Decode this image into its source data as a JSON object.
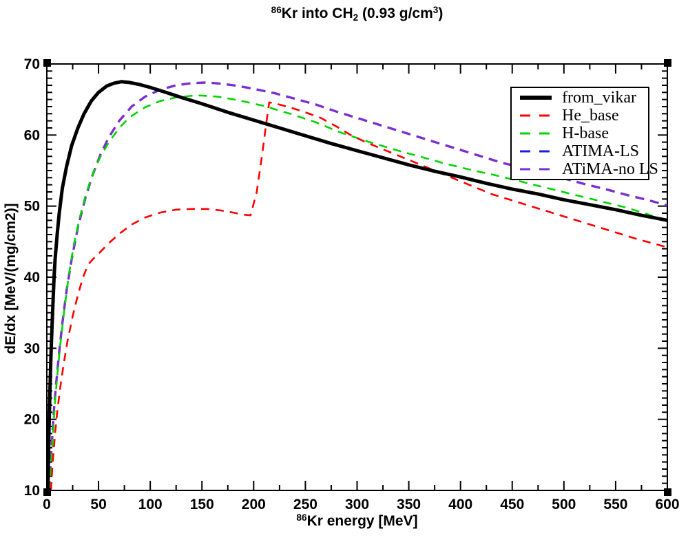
{
  "title": {
    "isotope_sup": "86",
    "body": "Kr into CH",
    "formula_sub": "2",
    "density_open": " (0.93 g/cm",
    "density_sup": "3",
    "density_close": ")"
  },
  "axes": {
    "x": {
      "label_sup": "86",
      "label": "Kr energy [MeV]",
      "min": 0,
      "max": 600,
      "major_step": 50,
      "minor_step": 25,
      "tick_labels": [
        0,
        50,
        100,
        150,
        200,
        250,
        300,
        350,
        400,
        450,
        500,
        550,
        600
      ]
    },
    "y": {
      "label": "dE/dx [MeV/(mg/cm2)]",
      "min": 10,
      "max": 70,
      "major_step": 10,
      "minor_step": 1,
      "tick_labels": [
        10,
        20,
        30,
        40,
        50,
        60,
        70
      ]
    }
  },
  "legend": {
    "entries": [
      {
        "label": "from_vikar",
        "color": "#000000",
        "style": "solid",
        "dash": []
      },
      {
        "label": "He_base",
        "color": "#ff0000",
        "style": "dashed",
        "dash": [
          12,
          9
        ]
      },
      {
        "label": "H-base",
        "color": "#00d500",
        "style": "dashed",
        "dash": [
          12,
          9
        ]
      },
      {
        "label": "ATIMA-LS",
        "color": "#1c1cdd",
        "style": "dashed",
        "dash": [
          13,
          9
        ]
      },
      {
        "label": "ATiMA-no LS",
        "color": "#7b2fd0",
        "style": "dashed",
        "dash": [
          13,
          9
        ]
      }
    ]
  },
  "chart_data": {
    "type": "line",
    "title": "86Kr into CH2 (0.93 g/cm3)",
    "xlabel": "86Kr energy [MeV]",
    "ylabel": "dE/dx [MeV/(mg/cm2)]",
    "xlim": [
      0,
      600
    ],
    "ylim": [
      10,
      70
    ],
    "grid": false,
    "legend_position": "upper right",
    "series": [
      {
        "name": "from_vikar",
        "color": "#000000",
        "line_style": "solid",
        "width": 5,
        "points": [
          [
            1,
            10
          ],
          [
            1.5,
            14
          ],
          [
            2,
            18
          ],
          [
            3,
            24
          ],
          [
            4,
            29
          ],
          [
            5,
            33
          ],
          [
            6,
            36.5
          ],
          [
            7,
            40
          ],
          [
            8,
            42.5
          ],
          [
            10,
            46
          ],
          [
            12,
            49
          ],
          [
            15,
            52.5
          ],
          [
            19,
            55.5
          ],
          [
            24,
            58.5
          ],
          [
            30,
            61
          ],
          [
            36,
            63
          ],
          [
            43,
            64.8
          ],
          [
            50,
            66
          ],
          [
            58,
            66.9
          ],
          [
            65,
            67.3
          ],
          [
            72,
            67.5
          ],
          [
            80,
            67.4
          ],
          [
            90,
            67.1
          ],
          [
            100,
            66.7
          ],
          [
            115,
            66
          ],
          [
            130,
            65.3
          ],
          [
            150,
            64.4
          ],
          [
            175,
            63.2
          ],
          [
            200,
            62.1
          ],
          [
            225,
            61
          ],
          [
            250,
            59.9
          ],
          [
            275,
            58.8
          ],
          [
            300,
            57.8
          ],
          [
            325,
            56.8
          ],
          [
            350,
            55.8
          ],
          [
            375,
            54.9
          ],
          [
            400,
            54.1
          ],
          [
            425,
            53.2
          ],
          [
            450,
            52.4
          ],
          [
            475,
            51.7
          ],
          [
            500,
            50.9
          ],
          [
            525,
            50.2
          ],
          [
            550,
            49.5
          ],
          [
            575,
            48.7
          ],
          [
            600,
            48
          ]
        ]
      },
      {
        "name": "He_base",
        "color": "#ff0000",
        "line_style": "dashed",
        "width": 2.6,
        "points": [
          [
            4,
            10
          ],
          [
            5,
            12.5
          ],
          [
            6,
            14.5
          ],
          [
            8,
            18
          ],
          [
            10,
            21
          ],
          [
            13,
            24.5
          ],
          [
            16,
            27.5
          ],
          [
            20,
            31
          ],
          [
            25,
            34.5
          ],
          [
            30,
            37.5
          ],
          [
            35,
            40
          ],
          [
            40,
            41.8
          ],
          [
            45,
            42.6
          ],
          [
            52,
            43.6
          ],
          [
            60,
            44.8
          ],
          [
            70,
            46.1
          ],
          [
            82,
            47.4
          ],
          [
            95,
            48.4
          ],
          [
            110,
            49.1
          ],
          [
            125,
            49.5
          ],
          [
            140,
            49.6
          ],
          [
            155,
            49.6
          ],
          [
            168,
            49.4
          ],
          [
            180,
            49.1
          ],
          [
            190,
            48.8
          ],
          [
            197,
            48.7
          ],
          [
            203,
            52
          ],
          [
            208,
            57
          ],
          [
            212,
            61.5
          ],
          [
            215,
            64.6
          ],
          [
            222,
            64.4
          ],
          [
            235,
            63.9
          ],
          [
            250,
            63.2
          ],
          [
            265,
            62.4
          ],
          [
            280,
            61.2
          ],
          [
            295,
            59.9
          ],
          [
            310,
            58.9
          ],
          [
            325,
            58
          ],
          [
            340,
            57.1
          ],
          [
            355,
            56.2
          ],
          [
            370,
            55.3
          ],
          [
            385,
            54.4
          ],
          [
            400,
            53.5
          ],
          [
            415,
            52.6
          ],
          [
            430,
            51.7
          ],
          [
            450,
            50.8
          ],
          [
            470,
            49.9
          ],
          [
            490,
            49
          ],
          [
            510,
            48.1
          ],
          [
            530,
            47.2
          ],
          [
            550,
            46.3
          ],
          [
            570,
            45.4
          ],
          [
            585,
            44.8
          ],
          [
            600,
            44.2
          ]
        ]
      },
      {
        "name": "H-base",
        "color": "#00d500",
        "line_style": "dashed",
        "width": 2.6,
        "points": [
          [
            3,
            10
          ],
          [
            4,
            13
          ],
          [
            6,
            18
          ],
          [
            8,
            22.5
          ],
          [
            10,
            26
          ],
          [
            13,
            30.5
          ],
          [
            17,
            35.5
          ],
          [
            21,
            40
          ],
          [
            26,
            44.5
          ],
          [
            32,
            48.5
          ],
          [
            38,
            51.8
          ],
          [
            45,
            54.8
          ],
          [
            52,
            57
          ],
          [
            60,
            59
          ],
          [
            70,
            61
          ],
          [
            80,
            62.5
          ],
          [
            95,
            63.9
          ],
          [
            110,
            64.8
          ],
          [
            125,
            65.3
          ],
          [
            145,
            65.6
          ],
          [
            165,
            65.4
          ],
          [
            185,
            64.9
          ],
          [
            210,
            64.1
          ],
          [
            235,
            63
          ],
          [
            260,
            61.8
          ],
          [
            285,
            60.3
          ],
          [
            310,
            59.1
          ],
          [
            335,
            58
          ],
          [
            360,
            57
          ],
          [
            385,
            56
          ],
          [
            410,
            55.1
          ],
          [
            435,
            54.3
          ],
          [
            460,
            53.4
          ],
          [
            485,
            52.5
          ],
          [
            510,
            51.6
          ],
          [
            535,
            50.7
          ],
          [
            560,
            49.8
          ],
          [
            580,
            48.9
          ],
          [
            600,
            47.8
          ]
        ]
      },
      {
        "name": "ATIMA-LS",
        "color": "#1c1cdd",
        "line_style": "dashed",
        "width": 2.4,
        "points": [
          [
            2.5,
            10
          ],
          [
            3.5,
            13.5
          ],
          [
            5,
            17
          ],
          [
            7,
            21.5
          ],
          [
            9,
            25
          ],
          [
            12,
            29.5
          ],
          [
            15,
            33.5
          ],
          [
            19,
            38
          ],
          [
            24,
            42.5
          ],
          [
            30,
            47
          ],
          [
            37,
            51
          ],
          [
            44,
            54.3
          ],
          [
            52,
            57.3
          ],
          [
            60,
            59.7
          ],
          [
            70,
            62
          ],
          [
            82,
            64
          ],
          [
            95,
            65.4
          ],
          [
            110,
            66.4
          ],
          [
            125,
            67
          ],
          [
            140,
            67.3
          ],
          [
            155,
            67.4
          ],
          [
            170,
            67.2
          ],
          [
            185,
            66.9
          ],
          [
            200,
            66.5
          ],
          [
            220,
            65.9
          ],
          [
            240,
            65.1
          ],
          [
            260,
            64.3
          ],
          [
            280,
            63.3
          ],
          [
            300,
            62.4
          ],
          [
            320,
            61.5
          ],
          [
            340,
            60.6
          ],
          [
            360,
            59.7
          ],
          [
            380,
            58.8
          ],
          [
            400,
            57.9
          ],
          [
            420,
            57
          ],
          [
            440,
            56.1
          ],
          [
            460,
            55.4
          ],
          [
            480,
            54.6
          ],
          [
            500,
            53.9
          ],
          [
            520,
            53.1
          ],
          [
            540,
            52.4
          ],
          [
            560,
            51.6
          ],
          [
            580,
            50.9
          ],
          [
            600,
            50.1
          ]
        ]
      },
      {
        "name": "ATiMA-no LS",
        "color": "#7b2fd0",
        "line_style": "dashed",
        "width": 3.4,
        "points": [
          [
            2.5,
            10
          ],
          [
            3.5,
            13.5
          ],
          [
            5,
            17
          ],
          [
            7,
            21.5
          ],
          [
            9,
            25
          ],
          [
            12,
            29.5
          ],
          [
            15,
            33.5
          ],
          [
            19,
            38
          ],
          [
            24,
            42.5
          ],
          [
            30,
            47
          ],
          [
            37,
            51
          ],
          [
            44,
            54.3
          ],
          [
            52,
            57.3
          ],
          [
            60,
            59.7
          ],
          [
            70,
            62
          ],
          [
            82,
            64
          ],
          [
            95,
            65.4
          ],
          [
            110,
            66.4
          ],
          [
            125,
            67
          ],
          [
            140,
            67.3
          ],
          [
            155,
            67.4
          ],
          [
            170,
            67.2
          ],
          [
            185,
            66.9
          ],
          [
            200,
            66.5
          ],
          [
            220,
            65.9
          ],
          [
            240,
            65.1
          ],
          [
            260,
            64.3
          ],
          [
            280,
            63.3
          ],
          [
            300,
            62.4
          ],
          [
            320,
            61.5
          ],
          [
            340,
            60.6
          ],
          [
            360,
            59.7
          ],
          [
            380,
            58.8
          ],
          [
            400,
            57.9
          ],
          [
            420,
            57
          ],
          [
            440,
            56.1
          ],
          [
            460,
            55.4
          ],
          [
            480,
            54.6
          ],
          [
            500,
            53.9
          ],
          [
            520,
            53.1
          ],
          [
            540,
            52.4
          ],
          [
            560,
            51.6
          ],
          [
            580,
            50.9
          ],
          [
            600,
            50.1
          ]
        ]
      }
    ]
  }
}
